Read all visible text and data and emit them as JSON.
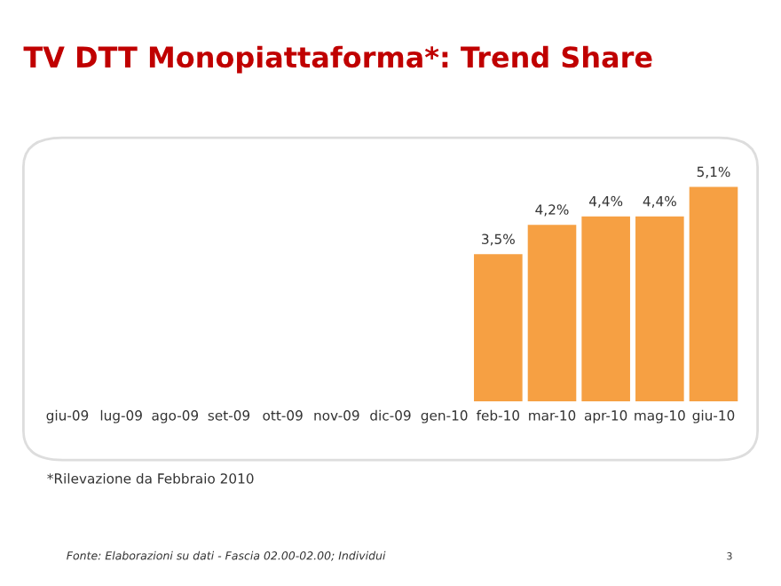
{
  "chart_data": {
    "type": "bar",
    "title": "TV DTT Monopiattaforma*: Trend Share",
    "categories": [
      "giu-09",
      "lug-09",
      "ago-09",
      "set-09",
      "ott-09",
      "nov-09",
      "dic-09",
      "gen-10",
      "feb-10",
      "mar-10",
      "apr-10",
      "mag-10",
      "giu-10"
    ],
    "values": [
      null,
      null,
      null,
      null,
      null,
      null,
      null,
      null,
      3.5,
      4.2,
      4.4,
      4.4,
      5.1
    ],
    "value_labels": [
      null,
      null,
      null,
      null,
      null,
      null,
      null,
      null,
      "3,5%",
      "4,2%",
      "4,4%",
      "4,4%",
      "5,1%"
    ],
    "color": "#f6a043",
    "annotations": [
      "*Rilevazione da Febbraio 2010",
      "Fonte: Elaborazioni su dati - Fascia 02.00-02.00; Individui",
      "3"
    ],
    "grid": false,
    "legend": false
  }
}
